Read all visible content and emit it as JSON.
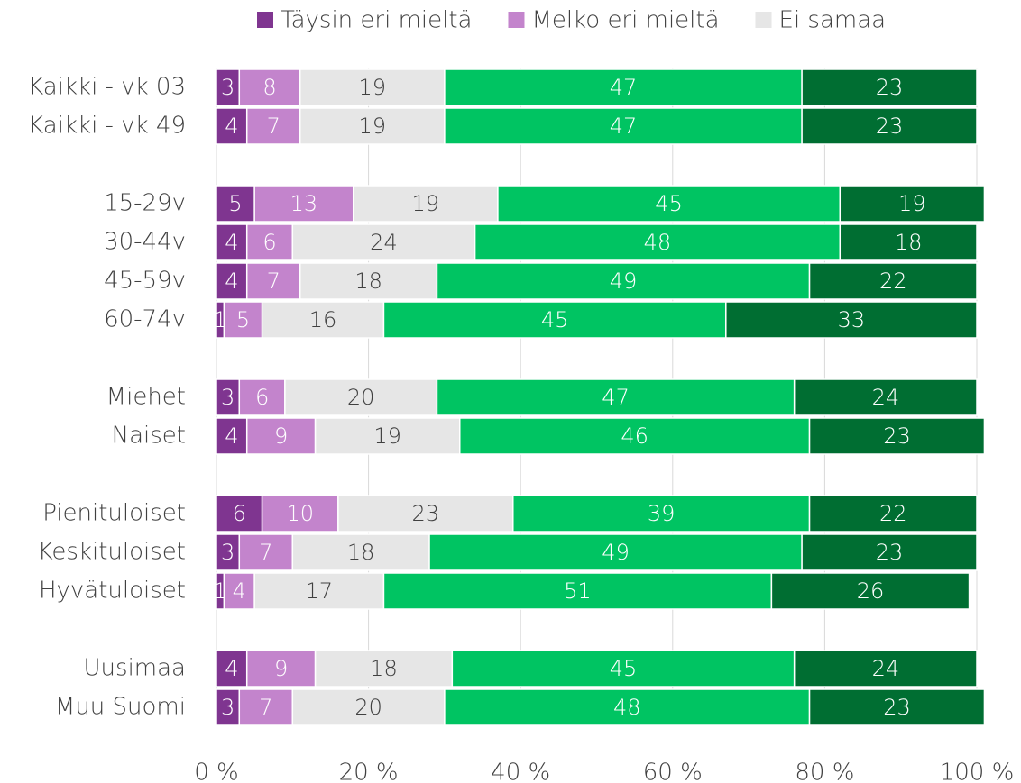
{
  "chart_data": {
    "type": "bar",
    "orientation": "horizontal",
    "stacked": true,
    "categories": [
      "Kaikki - vk 03",
      "Kaikki - vk 49",
      null,
      "15-29v",
      "30-44v",
      "45-59v",
      "60-74v",
      null,
      "Miehet",
      "Naiset",
      null,
      "Pienituloiset",
      "Keskituloiset",
      "Hyvätuloiset",
      null,
      "Uusimaa",
      "Muu Suomi"
    ],
    "series": [
      {
        "name": "Täysin eri mieltä",
        "color": "#7f3590",
        "values": [
          3,
          4,
          null,
          5,
          4,
          4,
          1,
          null,
          3,
          4,
          null,
          6,
          3,
          1,
          null,
          4,
          3
        ]
      },
      {
        "name": "Melko eri mieltä",
        "color": "#c384cc",
        "values": [
          8,
          7,
          null,
          13,
          6,
          7,
          5,
          null,
          6,
          9,
          null,
          10,
          7,
          4,
          null,
          9,
          7
        ]
      },
      {
        "name": "Ei samaa",
        "color": "#e6e6e6",
        "values": [
          19,
          19,
          null,
          19,
          24,
          18,
          16,
          null,
          20,
          19,
          null,
          23,
          18,
          17,
          null,
          18,
          20
        ]
      },
      {
        "color": "#00c462",
        "values": [
          47,
          47,
          null,
          45,
          48,
          49,
          45,
          null,
          47,
          46,
          null,
          39,
          49,
          51,
          null,
          45,
          48
        ]
      },
      {
        "color": "#006e32",
        "values": [
          23,
          23,
          null,
          19,
          18,
          22,
          33,
          null,
          24,
          23,
          null,
          22,
          23,
          26,
          null,
          24,
          23
        ]
      }
    ],
    "xlim": [
      0,
      100
    ],
    "xticks": [
      {
        "value": 0,
        "label": "0 %"
      },
      {
        "value": 20,
        "label": "20 %"
      },
      {
        "value": 40,
        "label": "40 %"
      },
      {
        "value": 60,
        "label": "60 %"
      },
      {
        "value": 80,
        "label": "80 %"
      },
      {
        "value": 100,
        "label": "100 %"
      }
    ],
    "grid": true,
    "legend": "top"
  }
}
